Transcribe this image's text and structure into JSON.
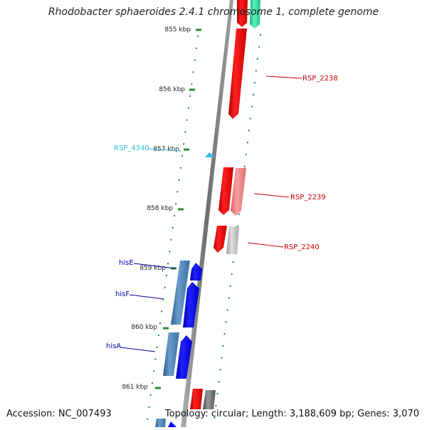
{
  "title": "Rhodobacter sphaeroides 2.4.1 chromosome 1, complete genome",
  "footer": {
    "accession": "Accession: NC_007493",
    "summary": "Topology: circular; Length: 3,188,609 bp; Genes: 3,070"
  },
  "kbp_labels": [
    "855 kbp",
    "856 kbp",
    "857 kbp",
    "858 kbp",
    "859 kbp",
    "860 kbp",
    "861 kbp"
  ],
  "genes": [
    {
      "name": "RSP_2238",
      "color": "#cc0000"
    },
    {
      "name": "RSP_4340",
      "color": "#33bbdd"
    },
    {
      "name": "RSP_2239",
      "color": "#cc0000"
    },
    {
      "name": "RSP_2240",
      "color": "#cc0000"
    },
    {
      "name": "hisE",
      "color": "#0000aa"
    },
    {
      "name": "hisF",
      "color": "#0000aa"
    },
    {
      "name": "hisA",
      "color": "#0000aa"
    }
  ],
  "colors": {
    "backbone": "#8a8a8a",
    "ticks": "#2a8a2a",
    "red_gene": "#ff0000",
    "pink_gene": "#f08080",
    "blue_gene": "#0000ff",
    "steel_gene": "#4682b4",
    "cyan_gene": "#33bbdd",
    "teal_gene": "#22ddaa",
    "gray_gene": "#666666"
  }
}
